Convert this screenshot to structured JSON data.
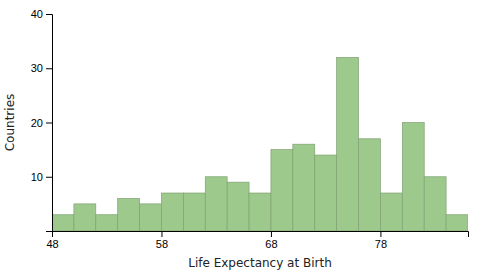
{
  "chart_data": {
    "type": "histogram",
    "bins": [
      48,
      50,
      52,
      54,
      56,
      58,
      60,
      62,
      64,
      66,
      68,
      70,
      72,
      74,
      76,
      78,
      80,
      82,
      84,
      86
    ],
    "values": [
      3,
      5,
      3,
      6,
      5,
      7,
      7,
      10,
      9,
      7,
      15,
      16,
      14,
      32,
      17,
      7,
      20,
      10,
      3
    ],
    "color": "#9dc98d",
    "x_label": "Life Expectancy at Birth",
    "y_label": "Countries",
    "xlim": [
      48,
      86
    ],
    "ylim": [
      0,
      40
    ],
    "xticks": [
      48,
      58,
      68,
      78
    ],
    "yticks": [
      10,
      20,
      30,
      40
    ],
    "grid": false
  }
}
